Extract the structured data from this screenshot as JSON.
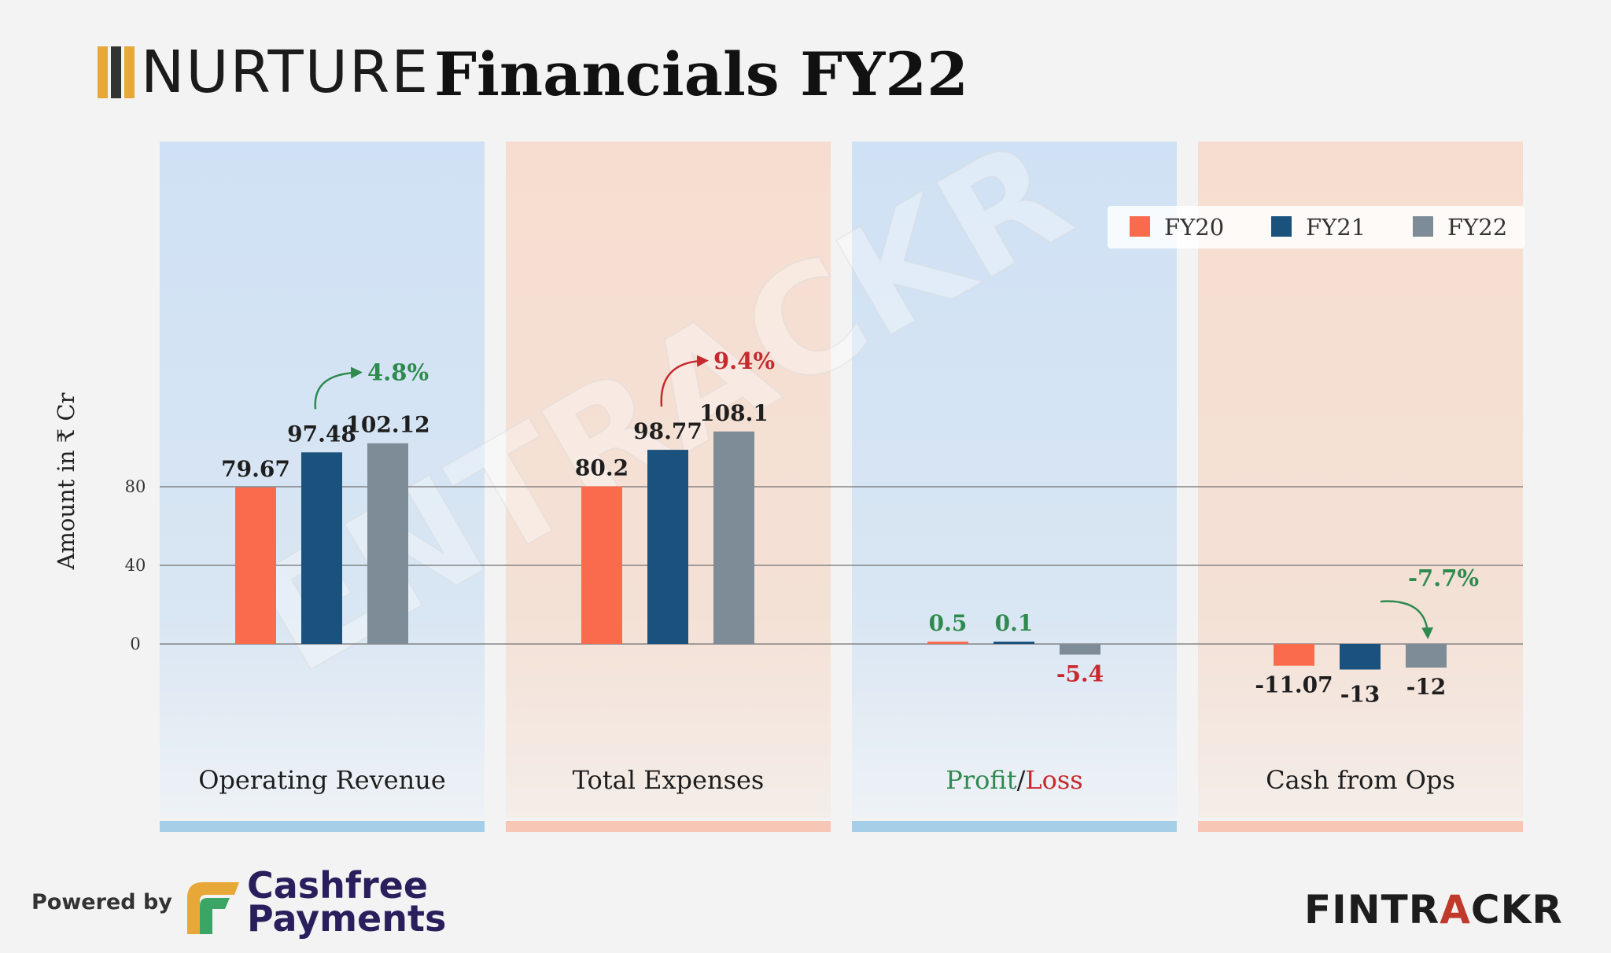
{
  "header": {
    "logo_text": "NURTURE",
    "title": "Financials FY22",
    "logo_colors": [
      "#e8a838",
      "#333333",
      "#e8a838"
    ]
  },
  "footer": {
    "powered_by": "Powered by",
    "brand_line1": "Cashfree",
    "brand_line2": "Payments",
    "fintrackr_pre": "FINTR",
    "fintrackr_accent": "A",
    "fintrackr_post": "CKR"
  },
  "watermark": "ENTRACKR",
  "chart_data": {
    "type": "bar",
    "ylabel": "Amount in ₹ Cr",
    "yticks": [
      0,
      40,
      80
    ],
    "ylim": [
      -26,
      126
    ],
    "grid": true,
    "legend_position": "top-right",
    "series": [
      {
        "name": "FY20",
        "color": "#fa6a4c"
      },
      {
        "name": "FY21",
        "color": "#1b527d"
      },
      {
        "name": "FY22",
        "color": "#7d8c96"
      }
    ],
    "groups": [
      {
        "label": "Operating Revenue",
        "values": [
          79.67,
          97.48,
          102.12
        ],
        "value_labels": [
          "79.67",
          "97.48",
          "102.12"
        ],
        "label_colors": [
          "#1e1e1e",
          "#1e1e1e",
          "#1e1e1e"
        ],
        "growth": "4.8%",
        "growth_color": "#2e8a4e",
        "panel_color": "blue"
      },
      {
        "label": "Total Expenses",
        "values": [
          80.2,
          98.77,
          108.1
        ],
        "value_labels": [
          "80.2",
          "98.77",
          "108.1"
        ],
        "label_colors": [
          "#1e1e1e",
          "#1e1e1e",
          "#1e1e1e"
        ],
        "growth": "9.4%",
        "growth_color": "#c62a2f",
        "panel_color": "orange"
      },
      {
        "label_parts": [
          {
            "text": "Profit",
            "color": "#2e8a4e"
          },
          {
            "text": "/",
            "color": "#1e1e1e"
          },
          {
            "text": "Loss",
            "color": "#c62a2f"
          }
        ],
        "values": [
          0.5,
          0.1,
          -5.4
        ],
        "value_labels": [
          "0.5",
          "0.1",
          "-5.4"
        ],
        "label_colors": [
          "#2e8a4e",
          "#2e8a4e",
          "#c62a2f"
        ],
        "panel_color": "blue"
      },
      {
        "label": "Cash from Ops",
        "values": [
          -11.07,
          -13,
          -12
        ],
        "value_labels": [
          "-11.07",
          "-13",
          "-12"
        ],
        "label_colors": [
          "#1e1e1e",
          "#1e1e1e",
          "#1e1e1e"
        ],
        "growth": "-7.7%",
        "growth_color": "#2e8a4e",
        "panel_color": "orange"
      }
    ]
  }
}
